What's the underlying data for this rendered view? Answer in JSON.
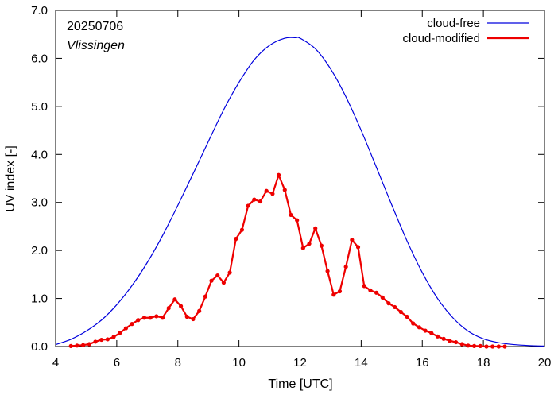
{
  "chart_data": {
    "type": "line",
    "title": "",
    "xlabel": "Time  [UTC]",
    "ylabel": "UV index  [-]",
    "xlim": [
      4,
      20
    ],
    "ylim": [
      0,
      7
    ],
    "xticks": [
      4,
      6,
      8,
      10,
      12,
      14,
      16,
      18,
      20
    ],
    "yticks": [
      0.0,
      1.0,
      2.0,
      3.0,
      4.0,
      5.0,
      6.0,
      7.0
    ],
    "xtick_labels": [
      "4",
      "6",
      "8",
      "10",
      "12",
      "14",
      "16",
      "18",
      "20"
    ],
    "ytick_labels": [
      "0.0",
      "1.0",
      "2.0",
      "3.0",
      "4.0",
      "5.0",
      "6.0",
      "7.0"
    ],
    "annotations": [
      "20250706",
      "Vlissingen"
    ],
    "legend_position": "top-right",
    "grid": false,
    "series": [
      {
        "name": "cloud-free",
        "color": "#0000dd",
        "markers": false,
        "x": [
          4.0,
          4.5,
          5.0,
          5.5,
          6.0,
          6.5,
          7.0,
          7.5,
          8.0,
          8.5,
          9.0,
          9.5,
          10.0,
          10.5,
          11.0,
          11.5,
          11.85,
          12.0,
          12.5,
          13.0,
          13.5,
          14.0,
          14.5,
          15.0,
          15.5,
          16.0,
          16.5,
          17.0,
          17.5,
          18.0,
          18.5,
          19.0,
          19.5,
          20.0
        ],
        "y": [
          0.04,
          0.15,
          0.32,
          0.55,
          0.87,
          1.27,
          1.75,
          2.31,
          2.94,
          3.6,
          4.27,
          4.93,
          5.5,
          5.97,
          6.27,
          6.42,
          6.43,
          6.42,
          6.2,
          5.78,
          5.2,
          4.5,
          3.73,
          2.95,
          2.2,
          1.54,
          1.0,
          0.6,
          0.32,
          0.16,
          0.08,
          0.04,
          0.02,
          0.01
        ]
      },
      {
        "name": "cloud-modified",
        "color": "#ee0000",
        "markers": true,
        "x": [
          4.5,
          4.7,
          4.9,
          5.1,
          5.3,
          5.5,
          5.7,
          5.9,
          6.1,
          6.3,
          6.5,
          6.7,
          6.9,
          7.1,
          7.3,
          7.5,
          7.7,
          7.9,
          8.1,
          8.3,
          8.5,
          8.7,
          8.9,
          9.1,
          9.3,
          9.5,
          9.7,
          9.9,
          10.1,
          10.3,
          10.5,
          10.7,
          10.9,
          11.1,
          11.3,
          11.5,
          11.7,
          11.9,
          12.1,
          12.3,
          12.5,
          12.7,
          12.9,
          13.1,
          13.3,
          13.5,
          13.7,
          13.9,
          14.1,
          14.3,
          14.5,
          14.7,
          14.9,
          15.1,
          15.3,
          15.5,
          15.7,
          15.9,
          16.1,
          16.3,
          16.5,
          16.7,
          16.9,
          17.1,
          17.3,
          17.5,
          17.7,
          17.9,
          18.1,
          18.3,
          18.5,
          18.7
        ],
        "y": [
          0.01,
          0.02,
          0.03,
          0.05,
          0.1,
          0.14,
          0.15,
          0.2,
          0.28,
          0.38,
          0.47,
          0.55,
          0.6,
          0.6,
          0.63,
          0.6,
          0.8,
          0.98,
          0.84,
          0.62,
          0.57,
          0.74,
          1.04,
          1.37,
          1.48,
          1.33,
          1.54,
          2.24,
          2.43,
          2.93,
          3.06,
          3.02,
          3.24,
          3.18,
          3.57,
          3.26,
          2.74,
          2.63,
          2.05,
          2.14,
          2.46,
          2.1,
          1.57,
          1.08,
          1.15,
          1.66,
          2.22,
          2.07,
          1.26,
          1.17,
          1.12,
          1.02,
          0.9,
          0.82,
          0.72,
          0.62,
          0.48,
          0.4,
          0.33,
          0.28,
          0.21,
          0.16,
          0.12,
          0.09,
          0.05,
          0.02,
          0.01,
          0.01,
          0.0,
          0.0,
          0.0,
          0.0
        ]
      }
    ]
  }
}
